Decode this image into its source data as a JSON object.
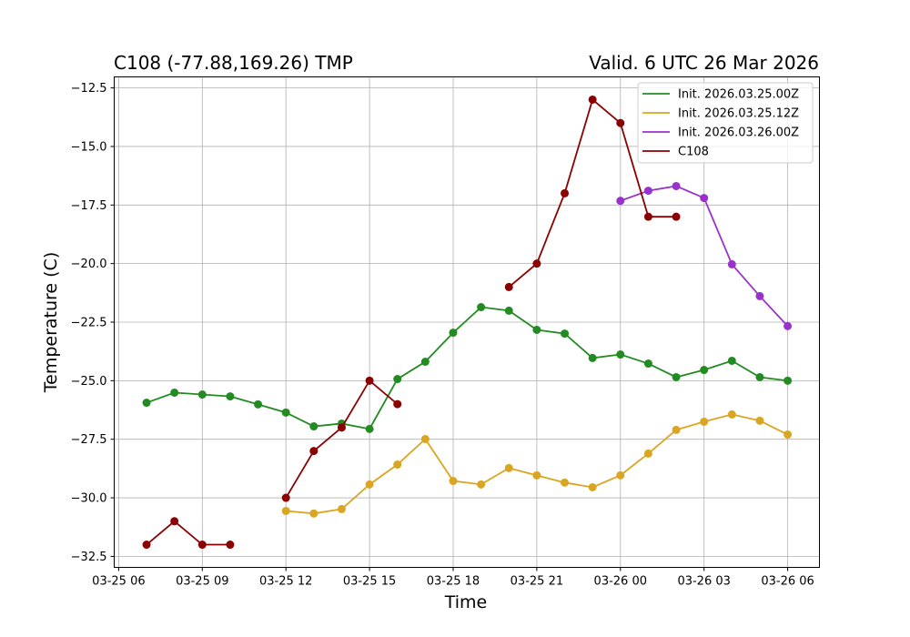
{
  "chart_data": {
    "type": "line",
    "title_left": "C108 (-77.88,169.26) TMP",
    "title_right": "Valid. 6 UTC 26 Mar 2026",
    "xlabel": "Time",
    "ylabel": "Temperature (C)",
    "x_unit": "hours since 03-25 00 UTC",
    "xlim": [
      5.84,
      31.14
    ],
    "ylim": [
      -32.97,
      -12.03
    ],
    "grid": true,
    "legend_position": "top-right",
    "x_ticks": [
      {
        "value": 6,
        "label": "03-25 06"
      },
      {
        "value": 9,
        "label": "03-25 09"
      },
      {
        "value": 12,
        "label": "03-25 12"
      },
      {
        "value": 15,
        "label": "03-25 15"
      },
      {
        "value": 18,
        "label": "03-25 18"
      },
      {
        "value": 21,
        "label": "03-25 21"
      },
      {
        "value": 24,
        "label": "03-26 00"
      },
      {
        "value": 27,
        "label": "03-26 03"
      },
      {
        "value": 30,
        "label": "03-26 06"
      }
    ],
    "y_ticks": [
      {
        "value": -12.5,
        "label": "−12.5"
      },
      {
        "value": -15,
        "label": "−15.0"
      },
      {
        "value": -17.5,
        "label": "−17.5"
      },
      {
        "value": -20,
        "label": "−20.0"
      },
      {
        "value": -22.5,
        "label": "−22.5"
      },
      {
        "value": -25,
        "label": "−25.0"
      },
      {
        "value": -27.5,
        "label": "−27.5"
      },
      {
        "value": -30,
        "label": "−30.0"
      },
      {
        "value": -32.5,
        "label": "−32.5"
      }
    ],
    "series": [
      {
        "name": "Init. 2026.03.25.00Z",
        "color": "#228B22",
        "x_start": 7,
        "values": [
          -25.94,
          -25.51,
          -25.59,
          -25.67,
          -26.01,
          -26.36,
          -26.95,
          -26.83,
          -27.06,
          -24.93,
          -24.19,
          -22.95,
          -21.86,
          -22.01,
          -22.83,
          -22.99,
          -24.03,
          -23.88,
          -24.27,
          -24.85,
          -24.54,
          -24.15,
          -24.85,
          -25.0
        ]
      },
      {
        "name": "Init. 2026.03.25.12Z",
        "color": "#DAA520",
        "x_start": 12,
        "values": [
          -30.56,
          -30.67,
          -30.48,
          -29.43,
          -28.58,
          -27.49,
          -29.28,
          -29.43,
          -28.73,
          -29.04,
          -29.35,
          -29.55,
          -29.04,
          -28.11,
          -27.1,
          -26.75,
          -26.44,
          -26.71,
          -27.3
        ]
      },
      {
        "name": "Init. 2026.03.26.00Z",
        "color": "#9932CC",
        "x_start": 24,
        "values": [
          -17.32,
          -16.89,
          -16.69,
          -17.2,
          -20.03,
          -21.39,
          -22.67
        ]
      },
      {
        "name": "C108",
        "color": "#8B0000",
        "x_start": 7,
        "values": [
          -32,
          -31,
          -32,
          -32,
          null,
          -30,
          -28,
          -27,
          -25,
          -26,
          null,
          null,
          null,
          -21,
          -20,
          -17,
          -13,
          -14,
          -18,
          -18
        ]
      }
    ]
  }
}
